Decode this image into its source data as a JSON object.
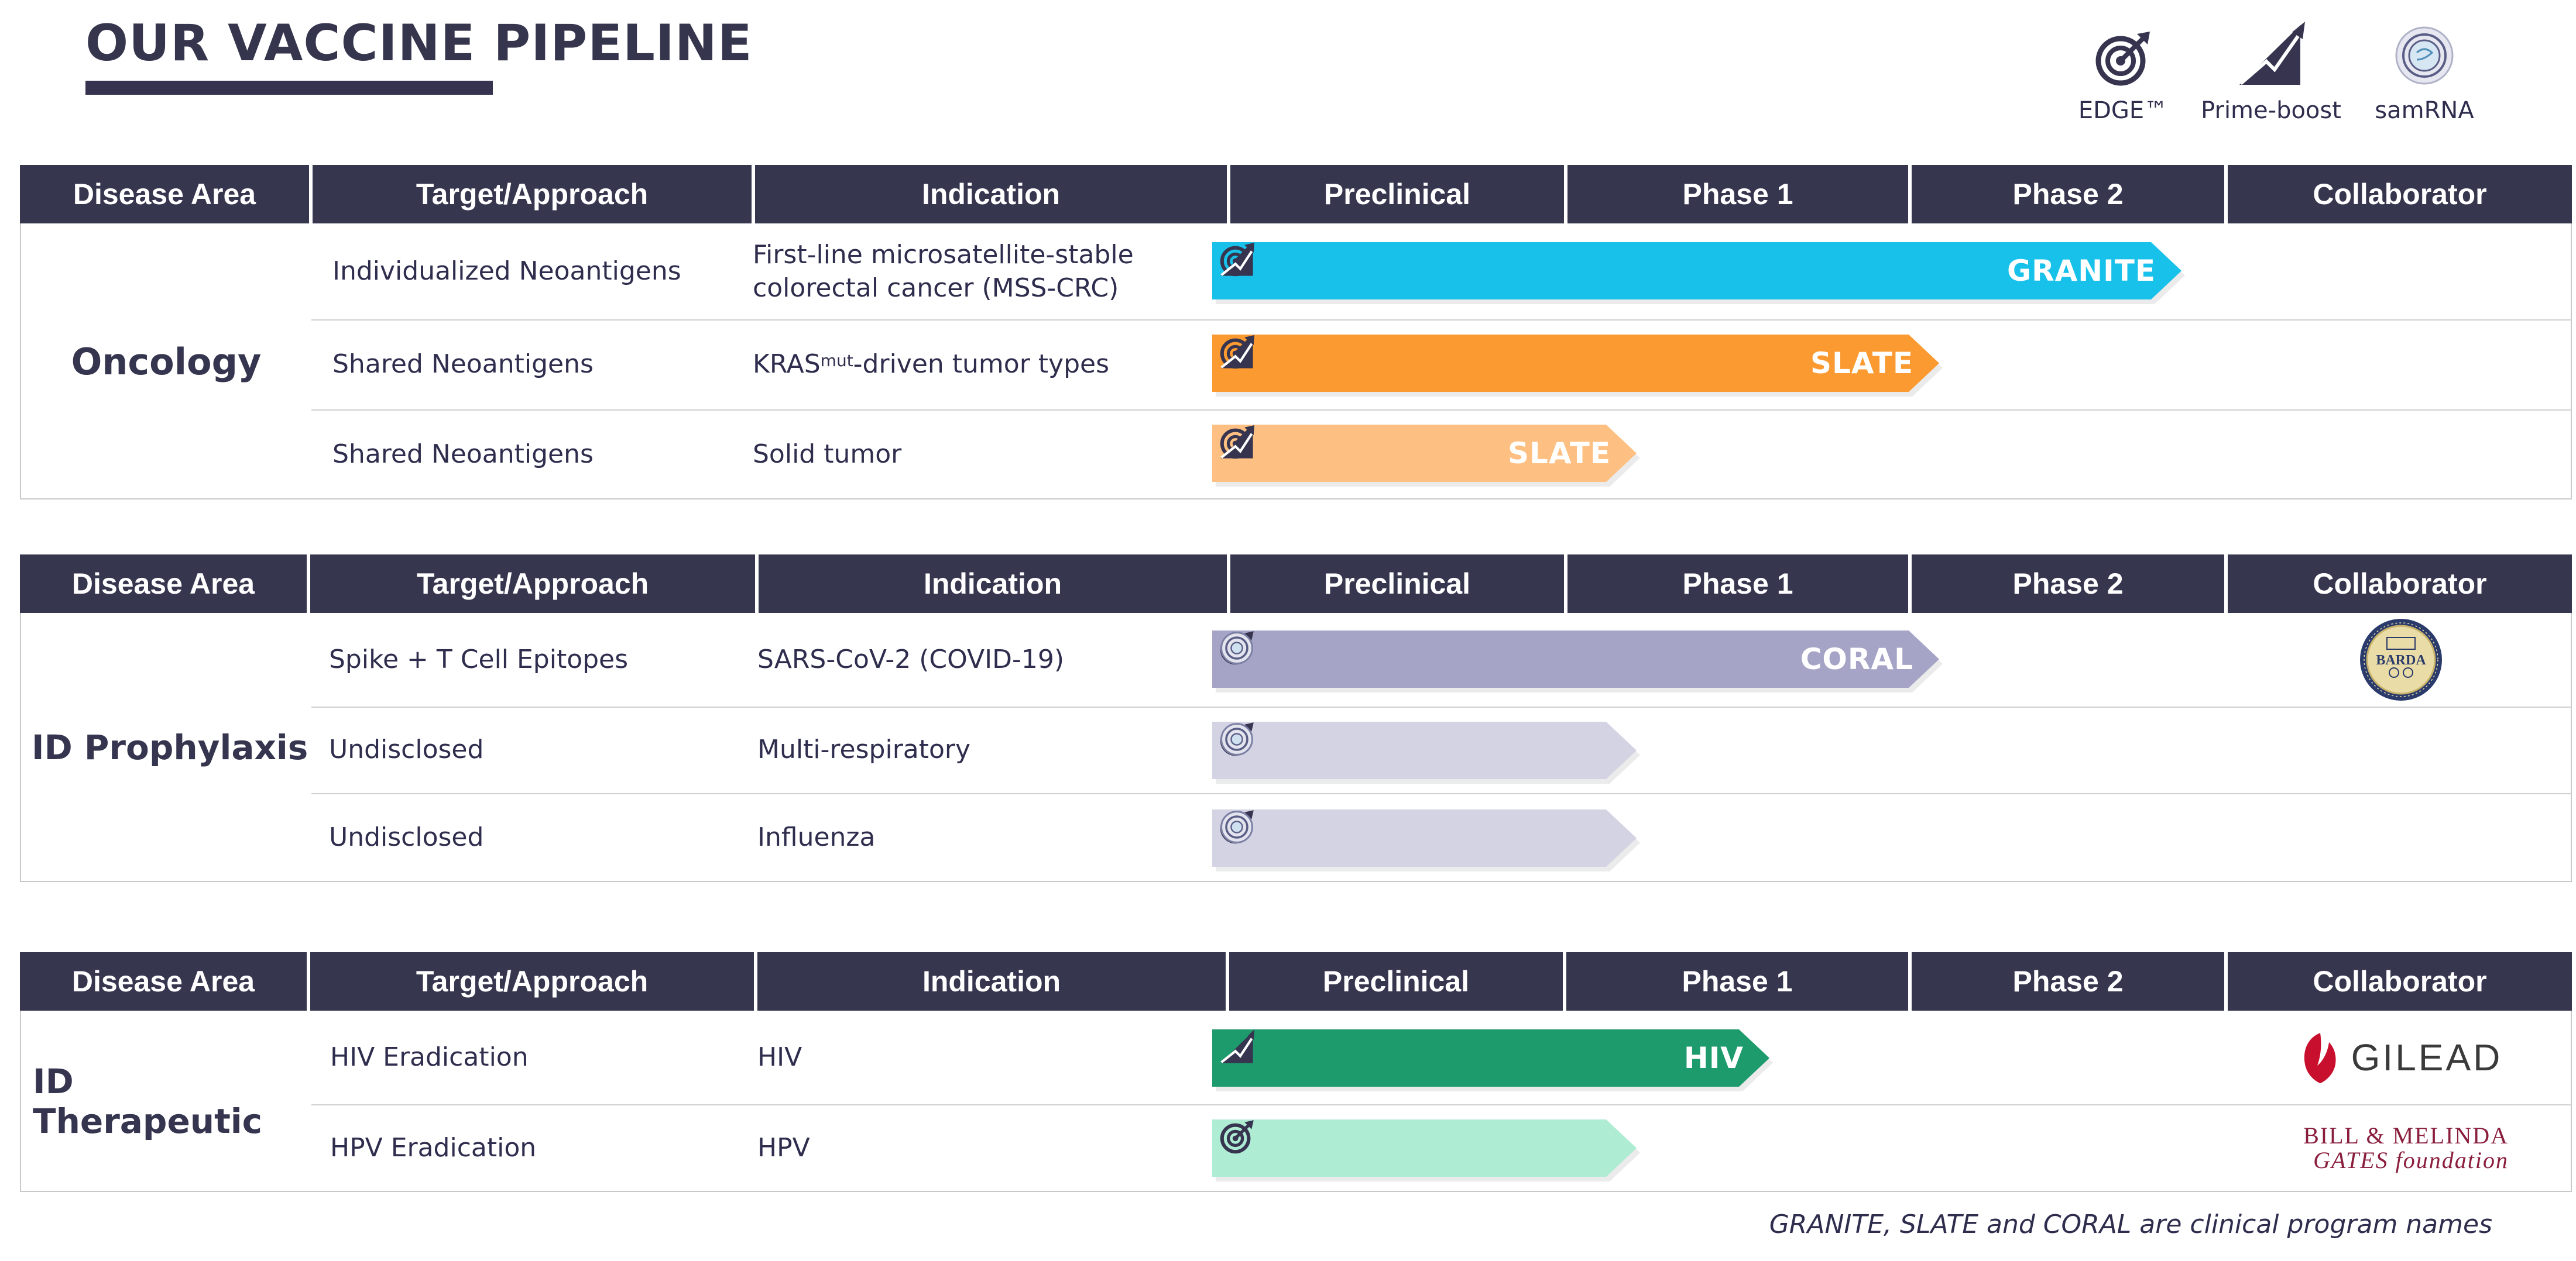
{
  "page": {
    "title": "OUR VACCINE PIPELINE",
    "footnote": "GRANITE, SLATE and CORAL are clinical program names"
  },
  "legend": [
    {
      "icon": "edge-target-icon",
      "label": "EDGE™"
    },
    {
      "icon": "prime-boost-icon",
      "label": "Prime-boost"
    },
    {
      "icon": "samrna-icon",
      "label": "samRNA"
    }
  ],
  "columns": [
    "Disease Area",
    "Target/Approach",
    "Indication",
    "Preclinical",
    "Phase 1",
    "Phase 2",
    "Collaborator"
  ],
  "sections": [
    {
      "disease_area": "Oncology",
      "rows": [
        {
          "target": "Individualized Neoantigens",
          "indication": "First-line microsatellite-stable colorectal cancer (MSS-CRC)",
          "program": "GRANITE",
          "stage": "Phase 2",
          "progress": 0.8,
          "color": "#17c1ea",
          "icons": [
            "edge-target-icon",
            "prime-boost-icon"
          ],
          "collaborator": ""
        },
        {
          "target": "Shared Neoantigens",
          "indication_main": "KRAS",
          "indication_sup": "mut",
          "indication_tail": "-driven tumor types",
          "program": "SLATE",
          "stage": "Phase 2",
          "progress": 0.6,
          "color": "#fb9a30",
          "icons": [
            "edge-target-icon",
            "prime-boost-icon"
          ],
          "collaborator": ""
        },
        {
          "target": "Shared Neoantigens",
          "indication": "Solid tumor",
          "program": "SLATE",
          "stage": "Preclinical",
          "progress": 0.35,
          "color": "#fdc082",
          "icons": [
            "edge-target-icon",
            "prime-boost-icon"
          ],
          "collaborator": ""
        }
      ]
    },
    {
      "disease_area": "ID Prophylaxis",
      "rows": [
        {
          "target": "Spike + T Cell Epitopes",
          "indication": "SARS-CoV-2 (COVID-19)",
          "program": "CORAL",
          "stage": "Phase 1",
          "progress": 0.6,
          "color": "#a5a4c6",
          "icons": [
            "edge-target-icon",
            "samrna-icon"
          ],
          "collaborator": "BARDA"
        },
        {
          "target": "Undisclosed",
          "indication": "Multi-respiratory",
          "program": "",
          "stage": "Preclinical",
          "progress": 0.35,
          "color": "#d3d3e4",
          "icons": [
            "edge-target-icon",
            "samrna-icon"
          ],
          "collaborator": ""
        },
        {
          "target": "Undisclosed",
          "indication": "Influenza",
          "program": "",
          "stage": "Preclinical",
          "progress": 0.35,
          "color": "#d3d3e4",
          "icons": [
            "edge-target-icon",
            "samrna-icon"
          ],
          "collaborator": ""
        }
      ]
    },
    {
      "disease_area": "ID Therapeutic",
      "rows": [
        {
          "target": "HIV Eradication",
          "indication": "HIV",
          "program": "HIV",
          "stage": "Phase 1",
          "progress": 0.46,
          "color": "#1d9b6c",
          "icons": [
            "prime-boost-icon"
          ],
          "collaborator": "GILEAD"
        },
        {
          "target": "HPV Eradication",
          "indication": "HPV",
          "program": "",
          "stage": "Preclinical",
          "progress": 0.35,
          "color": "#aeecd4",
          "icons": [
            "edge-target-icon"
          ],
          "collaborator_line1": "BILL & MELINDA",
          "collaborator_line2": "GATES foundation"
        }
      ]
    }
  ],
  "colors": {
    "header_bg": "#37364f",
    "title_text": "#35354d"
  }
}
